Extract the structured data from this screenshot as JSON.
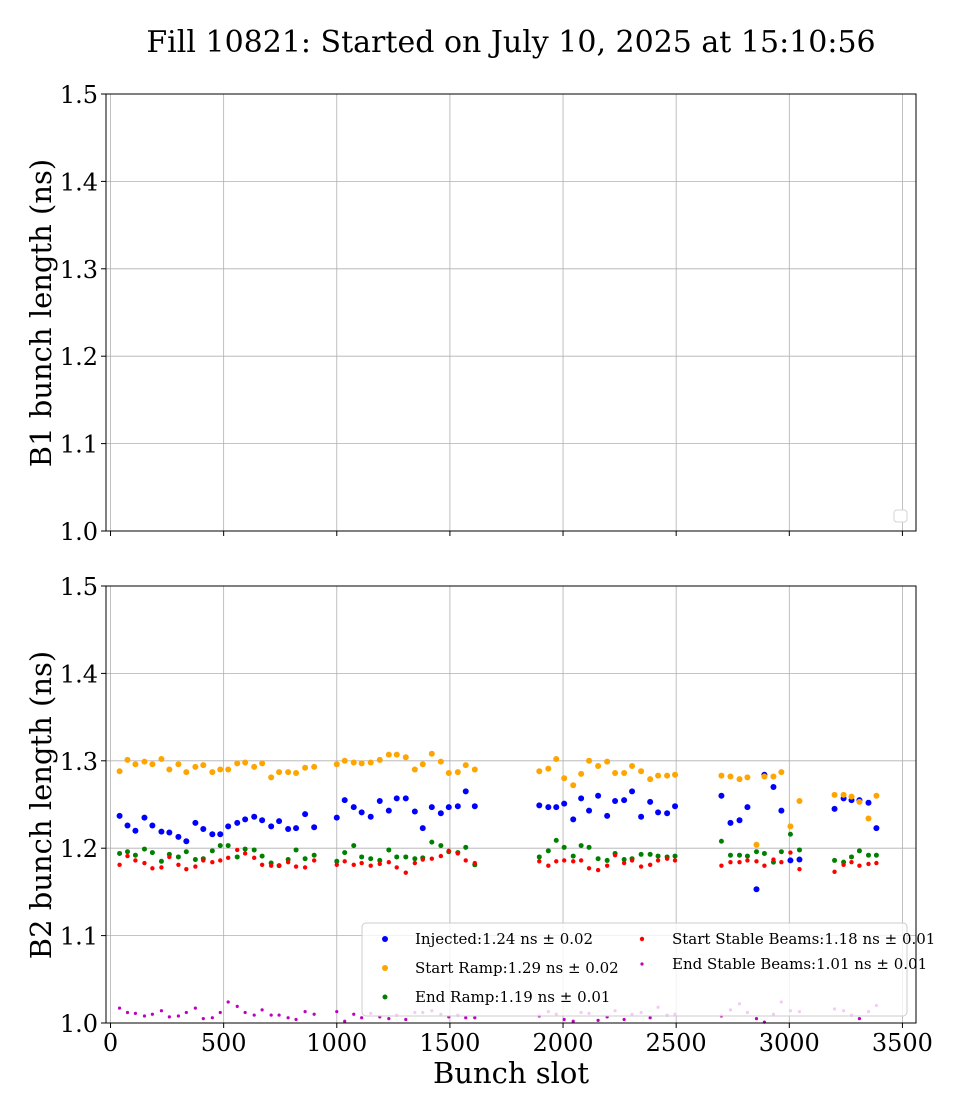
{
  "chart_data": {
    "title": "Fill 10821: Started on July 10, 2025 at 15:10:56",
    "xlabel": "Bunch slot",
    "panels": [
      {
        "id": "b1",
        "type": "scatter",
        "ylabel": "B1 bunch length (ns)",
        "ylim": [
          1.0,
          1.5
        ],
        "xlim": [
          -20,
          3560
        ],
        "yticks": [
          "1.0",
          "1.1",
          "1.2",
          "1.3",
          "1.4",
          "1.5"
        ],
        "grid": true,
        "show_xtick_labels": false,
        "legend": "bottom-right (empty)",
        "series": []
      },
      {
        "id": "b2",
        "type": "scatter",
        "ylabel": "B2 bunch length (ns)",
        "ylim": [
          1.0,
          1.5
        ],
        "xlim": [
          -20,
          3560
        ],
        "xticks": [
          "0",
          "500",
          "1000",
          "1500",
          "2000",
          "2500",
          "3000",
          "3500"
        ],
        "yticks": [
          "1.0",
          "1.1",
          "1.2",
          "1.3",
          "1.4",
          "1.5"
        ],
        "grid": true,
        "show_xtick_labels": true,
        "legend": "lower-right, 2 columns",
        "series": [
          {
            "name": "Injected:1.24 ns ± 0.02",
            "color": "#0000ff",
            "x": [
              40,
              75,
              110,
              150,
              185,
              225,
              260,
              300,
              335,
              375,
              410,
              450,
              485,
              520,
              560,
              595,
              635,
              670,
              710,
              745,
              785,
              820,
              860,
              900,
              1000,
              1035,
              1075,
              1110,
              1150,
              1190,
              1230,
              1265,
              1305,
              1345,
              1380,
              1420,
              1460,
              1495,
              1535,
              1570,
              1610,
              1895,
              1935,
              1970,
              2005,
              2045,
              2080,
              2115,
              2155,
              2195,
              2230,
              2270,
              2305,
              2345,
              2385,
              2420,
              2460,
              2495,
              2700,
              2740,
              2780,
              2815,
              2855,
              2890,
              2930,
              2965,
              3005,
              3045,
              3200,
              3240,
              3275,
              3310,
              3350,
              3385
            ],
            "y": [
              1.237,
              1.226,
              1.22,
              1.235,
              1.226,
              1.219,
              1.218,
              1.213,
              1.208,
              1.229,
              1.222,
              1.216,
              1.216,
              1.225,
              1.229,
              1.233,
              1.236,
              1.232,
              1.225,
              1.231,
              1.222,
              1.223,
              1.239,
              1.224,
              1.235,
              1.255,
              1.247,
              1.241,
              1.236,
              1.254,
              1.243,
              1.257,
              1.257,
              1.242,
              1.223,
              1.247,
              1.24,
              1.247,
              1.248,
              1.265,
              1.248,
              1.249,
              1.247,
              1.247,
              1.251,
              1.233,
              1.257,
              1.243,
              1.26,
              1.237,
              1.254,
              1.255,
              1.265,
              1.236,
              1.253,
              1.241,
              1.24,
              1.248,
              1.26,
              1.229,
              1.232,
              1.247,
              1.153,
              1.284,
              1.27,
              1.243,
              1.186,
              1.187,
              1.245,
              1.257,
              1.255,
              1.255,
              1.252,
              1.223
            ]
          },
          {
            "name": "Start Ramp:1.29 ns ± 0.02",
            "color": "#ffa500",
            "x": [
              40,
              75,
              110,
              150,
              185,
              225,
              260,
              300,
              335,
              375,
              410,
              450,
              485,
              520,
              560,
              595,
              635,
              670,
              710,
              745,
              785,
              820,
              860,
              900,
              1000,
              1035,
              1075,
              1110,
              1150,
              1190,
              1230,
              1265,
              1305,
              1345,
              1380,
              1420,
              1460,
              1495,
              1535,
              1570,
              1610,
              1895,
              1935,
              1970,
              2005,
              2045,
              2080,
              2115,
              2155,
              2195,
              2230,
              2270,
              2305,
              2345,
              2385,
              2420,
              2460,
              2495,
              2700,
              2740,
              2780,
              2815,
              2855,
              2890,
              2930,
              2965,
              3005,
              3045,
              3200,
              3240,
              3275,
              3310,
              3350,
              3385
            ],
            "y": [
              1.288,
              1.301,
              1.296,
              1.299,
              1.296,
              1.302,
              1.29,
              1.296,
              1.287,
              1.293,
              1.295,
              1.287,
              1.29,
              1.29,
              1.297,
              1.298,
              1.293,
              1.297,
              1.281,
              1.287,
              1.287,
              1.286,
              1.292,
              1.293,
              1.296,
              1.3,
              1.298,
              1.297,
              1.298,
              1.301,
              1.307,
              1.307,
              1.304,
              1.29,
              1.296,
              1.308,
              1.299,
              1.286,
              1.287,
              1.295,
              1.29,
              1.288,
              1.291,
              1.302,
              1.28,
              1.272,
              1.285,
              1.3,
              1.294,
              1.299,
              1.286,
              1.286,
              1.294,
              1.288,
              1.279,
              1.283,
              1.283,
              1.284,
              1.283,
              1.282,
              1.279,
              1.281,
              1.204,
              1.282,
              1.282,
              1.287,
              1.225,
              1.254,
              1.261,
              1.261,
              1.259,
              1.253,
              1.234,
              1.26
            ]
          },
          {
            "name": "End Ramp:1.19 ns ± 0.01",
            "color": "#008000",
            "x": [
              40,
              75,
              110,
              150,
              185,
              225,
              260,
              300,
              335,
              375,
              410,
              450,
              485,
              520,
              560,
              595,
              635,
              670,
              710,
              745,
              785,
              820,
              860,
              900,
              1000,
              1035,
              1075,
              1110,
              1150,
              1190,
              1230,
              1265,
              1305,
              1345,
              1380,
              1420,
              1460,
              1495,
              1535,
              1570,
              1610,
              1895,
              1935,
              1970,
              2005,
              2045,
              2080,
              2115,
              2155,
              2195,
              2230,
              2270,
              2305,
              2345,
              2385,
              2420,
              2460,
              2495,
              2700,
              2740,
              2780,
              2815,
              2855,
              2890,
              2930,
              2965,
              3005,
              3045,
              3200,
              3240,
              3275,
              3310,
              3350,
              3385
            ],
            "y": [
              1.194,
              1.196,
              1.192,
              1.199,
              1.195,
              1.185,
              1.193,
              1.19,
              1.196,
              1.187,
              1.188,
              1.197,
              1.203,
              1.203,
              1.19,
              1.199,
              1.198,
              1.191,
              1.183,
              1.18,
              1.187,
              1.198,
              1.188,
              1.192,
              1.185,
              1.195,
              1.203,
              1.19,
              1.188,
              1.186,
              1.198,
              1.19,
              1.19,
              1.188,
              1.189,
              1.207,
              1.203,
              1.196,
              1.195,
              1.201,
              1.181,
              1.19,
              1.197,
              1.209,
              1.201,
              1.191,
              1.203,
              1.201,
              1.188,
              1.186,
              1.194,
              1.187,
              1.188,
              1.193,
              1.193,
              1.191,
              1.19,
              1.191,
              1.208,
              1.192,
              1.192,
              1.191,
              1.196,
              1.194,
              1.184,
              1.196,
              1.216,
              1.198,
              1.186,
              1.184,
              1.19,
              1.197,
              1.192,
              1.192
            ]
          },
          {
            "name": "Start Stable Beams:1.18 ns ± 0.01",
            "color": "#ff0000",
            "x": [
              40,
              75,
              110,
              150,
              185,
              225,
              260,
              300,
              335,
              375,
              410,
              450,
              485,
              520,
              560,
              595,
              635,
              670,
              710,
              745,
              785,
              820,
              860,
              900,
              1000,
              1035,
              1075,
              1110,
              1150,
              1190,
              1230,
              1265,
              1305,
              1345,
              1380,
              1420,
              1460,
              1495,
              1535,
              1570,
              1610,
              1895,
              1935,
              1970,
              2005,
              2045,
              2080,
              2115,
              2155,
              2195,
              2230,
              2270,
              2305,
              2345,
              2385,
              2420,
              2460,
              2495,
              2700,
              2740,
              2780,
              2815,
              2855,
              2890,
              2930,
              2965,
              3005,
              3045,
              3200,
              3240,
              3275,
              3310,
              3350,
              3385
            ],
            "y": [
              1.181,
              1.191,
              1.186,
              1.183,
              1.177,
              1.178,
              1.19,
              1.181,
              1.176,
              1.179,
              1.186,
              1.184,
              1.186,
              1.189,
              1.198,
              1.194,
              1.189,
              1.181,
              1.18,
              1.18,
              1.184,
              1.179,
              1.178,
              1.186,
              1.181,
              1.185,
              1.181,
              1.183,
              1.18,
              1.182,
              1.184,
              1.178,
              1.172,
              1.183,
              1.187,
              1.188,
              1.191,
              1.197,
              1.194,
              1.186,
              1.183,
              1.185,
              1.18,
              1.185,
              1.186,
              1.185,
              1.186,
              1.177,
              1.175,
              1.18,
              1.192,
              1.183,
              1.186,
              1.179,
              1.181,
              1.186,
              1.188,
              1.186,
              1.18,
              1.184,
              1.184,
              1.186,
              1.185,
              1.18,
              1.187,
              1.184,
              1.195,
              1.176,
              1.173,
              1.181,
              1.184,
              1.18,
              1.182,
              1.183
            ]
          },
          {
            "name": "End Stable Beams:1.01 ns ± 0.01",
            "color": "#bf00bf",
            "x": [
              40,
              75,
              110,
              150,
              185,
              225,
              260,
              300,
              335,
              375,
              410,
              450,
              485,
              520,
              560,
              595,
              635,
              670,
              710,
              745,
              785,
              820,
              860,
              900,
              1000,
              1035,
              1075,
              1110,
              1150,
              1190,
              1230,
              1265,
              1305,
              1345,
              1380,
              1420,
              1460,
              1495,
              1535,
              1570,
              1610,
              1895,
              1935,
              1970,
              2005,
              2045,
              2080,
              2115,
              2155,
              2195,
              2230,
              2270,
              2305,
              2345,
              2385,
              2420,
              2460,
              2495,
              2700,
              2740,
              2780,
              2815,
              2855,
              2890,
              2930,
              2965,
              3005,
              3045,
              3200,
              3240,
              3275,
              3310,
              3350,
              3385
            ],
            "y": [
              1.017,
              1.012,
              1.011,
              1.008,
              1.01,
              1.014,
              1.007,
              1.008,
              1.012,
              1.017,
              1.005,
              1.006,
              1.012,
              1.024,
              1.019,
              1.012,
              1.009,
              1.015,
              1.009,
              1.009,
              1.006,
              1.004,
              1.013,
              1.01,
              1.013,
              1.002,
              1.01,
              1.006,
              1.011,
              1.007,
              1.005,
              1.009,
              1.004,
              1.012,
              1.012,
              1.014,
              1.01,
              1.007,
              1.009,
              1.006,
              1.006,
              1.008,
              1.013,
              1.01,
              1.004,
              1.002,
              1.012,
              1.011,
              1.003,
              1.007,
              1.014,
              1.004,
              1.01,
              1.012,
              1.006,
              1.018,
              1.009,
              1.01,
              1.008,
              1.015,
              1.022,
              1.012,
              1.005,
              1.001,
              1.01,
              1.024,
              1.014,
              1.013,
              1.016,
              1.014,
              1.009,
              1.005,
              1.013,
              1.02
            ]
          }
        ]
      }
    ]
  }
}
